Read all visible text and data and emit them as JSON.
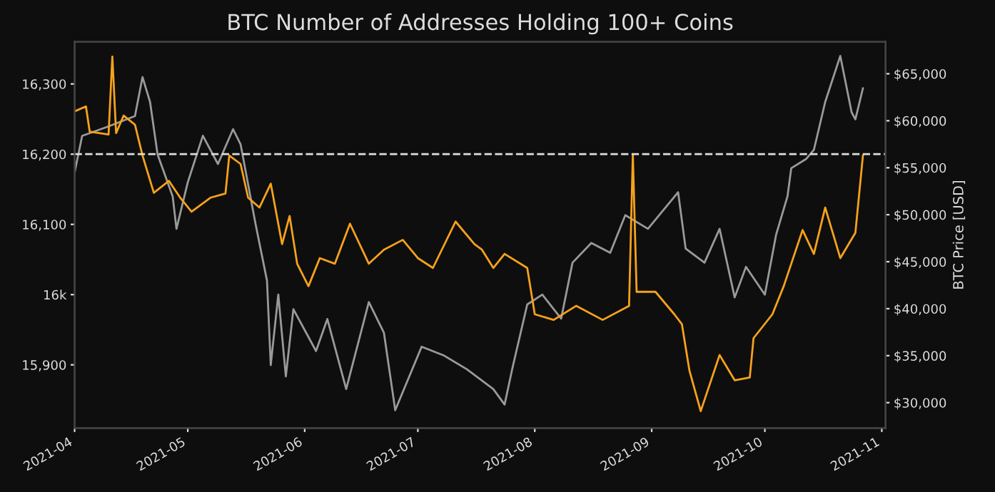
{
  "chart_data": {
    "type": "line",
    "title": "BTC Number of Addresses Holding 100+ Coins",
    "y2label": "BTC Price [USD]",
    "xlim": [
      "2021-04-01",
      "2021-11-02"
    ],
    "xticks": [
      {
        "value": "2021-04-01",
        "label": "2021-04"
      },
      {
        "value": "2021-05-01",
        "label": "2021-05"
      },
      {
        "value": "2021-06-01",
        "label": "2021-06"
      },
      {
        "value": "2021-07-01",
        "label": "2021-07"
      },
      {
        "value": "2021-08-01",
        "label": "2021-08"
      },
      {
        "value": "2021-09-01",
        "label": "2021-09"
      },
      {
        "value": "2021-10-01",
        "label": "2021-10"
      },
      {
        "value": "2021-11-01",
        "label": "2021-11"
      }
    ],
    "ylim": [
      15810,
      16360
    ],
    "yticks": [
      {
        "value": 15900,
        "label": "15,900"
      },
      {
        "value": 16000,
        "label": "16k"
      },
      {
        "value": 16100,
        "label": "16,100"
      },
      {
        "value": 16200,
        "label": "16,200"
      },
      {
        "value": 16300,
        "label": "16,300"
      }
    ],
    "y2lim": [
      27300,
      68400
    ],
    "y2ticks": [
      {
        "value": 30000,
        "label": "$30,000"
      },
      {
        "value": 35000,
        "label": "$35,000"
      },
      {
        "value": 40000,
        "label": "$40,000"
      },
      {
        "value": 45000,
        "label": "$45,000"
      },
      {
        "value": 50000,
        "label": "$50,000"
      },
      {
        "value": 55000,
        "label": "$55,000"
      },
      {
        "value": 60000,
        "label": "$60,000"
      },
      {
        "value": 65000,
        "label": "$65,000"
      }
    ],
    "grid": false,
    "legend": false,
    "ref_lines": [
      {
        "axis": "y",
        "value": 16200,
        "color": "#dddddd",
        "line_style": "dashed"
      }
    ],
    "series": [
      {
        "axis": "y2",
        "color": "#9a9a9a",
        "x": [
          "2021-04-01",
          "2021-04-03",
          "2021-04-10",
          "2021-04-17",
          "2021-04-19",
          "2021-04-21",
          "2021-04-23",
          "2021-04-27",
          "2021-04-28",
          "2021-05-01",
          "2021-05-05",
          "2021-05-09",
          "2021-05-13",
          "2021-05-15",
          "2021-05-19",
          "2021-05-22",
          "2021-05-23",
          "2021-05-25",
          "2021-05-27",
          "2021-05-29",
          "2021-06-04",
          "2021-06-07",
          "2021-06-12",
          "2021-06-18",
          "2021-06-22",
          "2021-06-25",
          "2021-07-02",
          "2021-07-08",
          "2021-07-14",
          "2021-07-21",
          "2021-07-24",
          "2021-07-26",
          "2021-07-30",
          "2021-08-03",
          "2021-08-08",
          "2021-08-11",
          "2021-08-16",
          "2021-08-21",
          "2021-08-25",
          "2021-08-31",
          "2021-09-08",
          "2021-09-10",
          "2021-09-15",
          "2021-09-19",
          "2021-09-23",
          "2021-09-26",
          "2021-10-01",
          "2021-10-04",
          "2021-10-07",
          "2021-10-08",
          "2021-10-12",
          "2021-10-14",
          "2021-10-17",
          "2021-10-21",
          "2021-10-24",
          "2021-10-25",
          "2021-10-27"
        ],
        "values": [
          54500,
          58400,
          59400,
          60500,
          64650,
          62000,
          56400,
          51950,
          48500,
          53450,
          58400,
          55400,
          59100,
          57500,
          48950,
          43000,
          34000,
          41500,
          32800,
          39950,
          35500,
          38900,
          31450,
          40700,
          37450,
          29200,
          35950,
          35000,
          33550,
          31450,
          29800,
          33550,
          40450,
          41500,
          38950,
          44900,
          47000,
          45950,
          49950,
          48500,
          52400,
          46400,
          44900,
          48500,
          41200,
          44450,
          41500,
          47900,
          51950,
          54950,
          55950,
          56900,
          62000,
          66900,
          60900,
          60150,
          63450
        ]
      },
      {
        "axis": "y",
        "color": "#f7a21b",
        "x": [
          "2021-04-01",
          "2021-04-04",
          "2021-04-05",
          "2021-04-10",
          "2021-04-11",
          "2021-04-12",
          "2021-04-14",
          "2021-04-17",
          "2021-04-19",
          "2021-04-22",
          "2021-04-26",
          "2021-04-29",
          "2021-05-02",
          "2021-05-07",
          "2021-05-11",
          "2021-05-12",
          "2021-05-15",
          "2021-05-17",
          "2021-05-20",
          "2021-05-23",
          "2021-05-26",
          "2021-05-28",
          "2021-05-30",
          "2021-06-02",
          "2021-06-05",
          "2021-06-09",
          "2021-06-13",
          "2021-06-18",
          "2021-06-22",
          "2021-06-27",
          "2021-07-01",
          "2021-07-05",
          "2021-07-11",
          "2021-07-16",
          "2021-07-18",
          "2021-07-21",
          "2021-07-24",
          "2021-07-30",
          "2021-08-01",
          "2021-08-06",
          "2021-08-12",
          "2021-08-19",
          "2021-08-26",
          "2021-08-27",
          "2021-08-28",
          "2021-09-02",
          "2021-09-07",
          "2021-09-09",
          "2021-09-11",
          "2021-09-14",
          "2021-09-19",
          "2021-09-23",
          "2021-09-27",
          "2021-09-28",
          "2021-10-03",
          "2021-10-06",
          "2021-10-11",
          "2021-10-14",
          "2021-10-17",
          "2021-10-21",
          "2021-10-25",
          "2021-10-27"
        ],
        "values": [
          16261,
          16268,
          16232,
          16228,
          16339,
          16230,
          16255,
          16242,
          16198,
          16145,
          16162,
          16138,
          16118,
          16138,
          16144,
          16198,
          16186,
          16138,
          16124,
          16158,
          16072,
          16112,
          16044,
          16012,
          16052,
          16044,
          16101,
          16044,
          16064,
          16078,
          16052,
          16038,
          16104,
          16072,
          16064,
          16038,
          16058,
          16038,
          15972,
          15964,
          15984,
          15964,
          15984,
          16200,
          16004,
          16004,
          15972,
          15958,
          15892,
          15834,
          15914,
          15878,
          15882,
          15938,
          15972,
          16012,
          16092,
          16058,
          16124,
          16052,
          16088,
          16198
        ]
      }
    ]
  }
}
